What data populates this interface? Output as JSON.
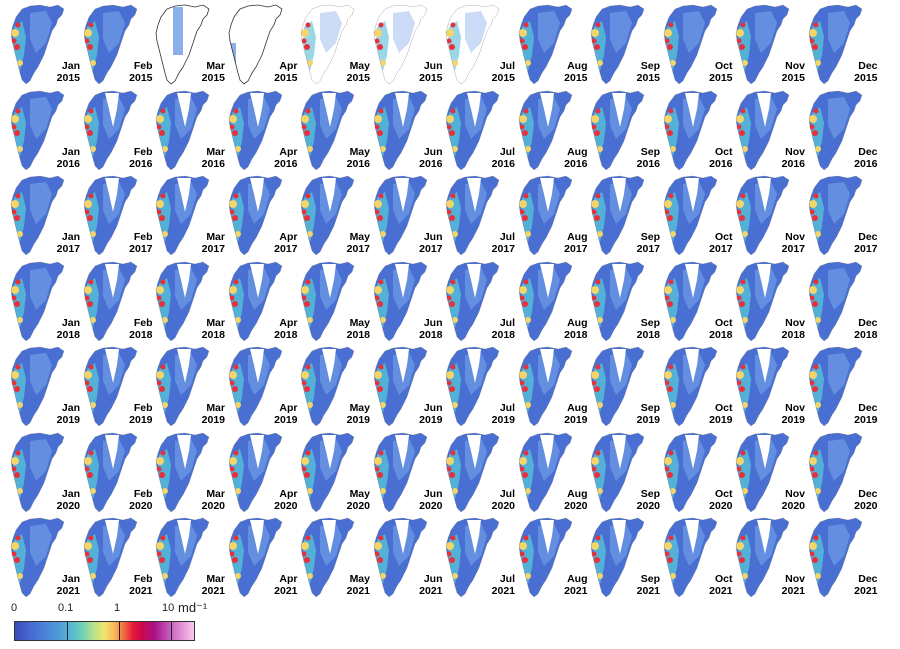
{
  "years": [
    "2015",
    "2016",
    "2017",
    "2018",
    "2019",
    "2020",
    "2021"
  ],
  "months": [
    "Jan",
    "Feb",
    "Mar",
    "Apr",
    "May",
    "Jun",
    "Jul",
    "Aug",
    "Sep",
    "Oct",
    "Nov",
    "Dec"
  ],
  "map_style": {
    "base": "#4a6fd2",
    "mid": "#6f9be6",
    "coast_fast": "#55bcd8",
    "hot": "#e8303a",
    "warm": "#f3d56a",
    "outline": "#555555",
    "nodata_black": "#000000"
  },
  "legend": {
    "tick_labels": [
      "0",
      "0.1",
      "1",
      "10"
    ],
    "unit_label": "md⁻¹",
    "scale": "logarithmic"
  }
}
